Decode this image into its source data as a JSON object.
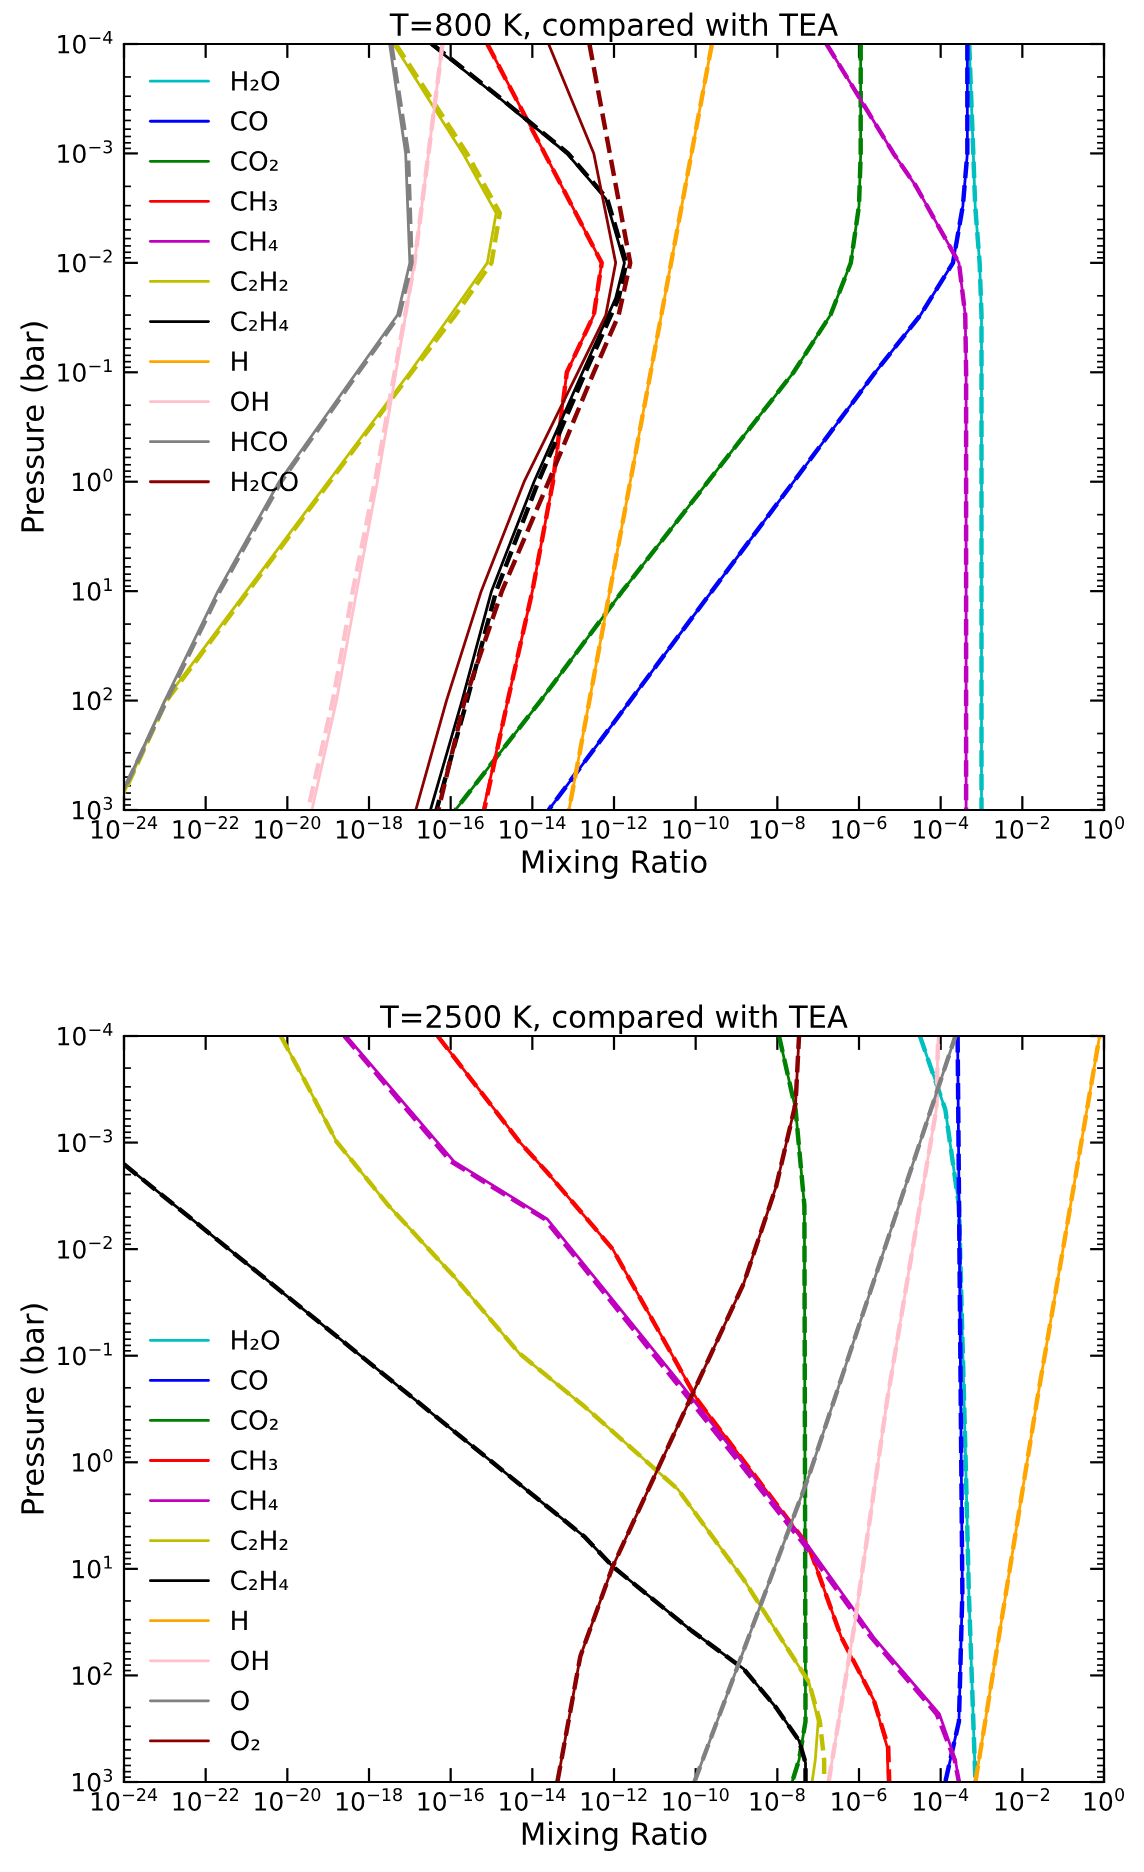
{
  "chart_data": [
    {
      "type": "line",
      "title": "T=800 K, compared with TEA",
      "xlabel": "Mixing Ratio",
      "ylabel": "Pressure (bar)",
      "log": "xy",
      "grid": false,
      "legend": "top left",
      "marker": "none",
      "xlim": [
        1e-24,
        1
      ],
      "ylim": [
        1000,
        0.0001
      ],
      "xticks": [
        {
          "value": 1e-24,
          "label": "10$^{−24}$"
        },
        {
          "value": 1e-22,
          "label": "10$^{−22}$"
        },
        {
          "value": 1e-20,
          "label": "10$^{−20}$"
        },
        {
          "value": 1e-18,
          "label": "10$^{−18}$"
        },
        {
          "value": 1e-16,
          "label": "10$^{−16}$"
        },
        {
          "value": 1e-14,
          "label": "10$^{−14}$"
        },
        {
          "value": 1e-12,
          "label": "10$^{−12}$"
        },
        {
          "value": 1e-10,
          "label": "10$^{−10}$"
        },
        {
          "value": 1e-08,
          "label": "10$^{−8}$"
        },
        {
          "value": 1e-06,
          "label": "10$^{−6}$"
        },
        {
          "value": 0.0001,
          "label": "10$^{−4}$"
        },
        {
          "value": 0.01,
          "label": "10$^{−2}$"
        },
        {
          "value": 1,
          "label": "10$^{0}$"
        }
      ],
      "yticks": [
        {
          "value": 0.0001,
          "label": "10$^{−4}$"
        },
        {
          "value": 0.001,
          "label": "10$^{−3}$"
        },
        {
          "value": 0.01,
          "label": "10$^{−2}$"
        },
        {
          "value": 0.1,
          "label": "10$^{−1}$"
        },
        {
          "value": 1,
          "label": "10$^{0}$"
        },
        {
          "value": 10,
          "label": "10$^{1}$"
        },
        {
          "value": 100,
          "label": "10$^{2}$"
        },
        {
          "value": 1000,
          "label": "10$^{3}$"
        }
      ],
      "series": [
        {
          "name": "H₂O",
          "color": "#00bfbf",
          "line_style": "solid",
          "x": [
            0.0005,
            0.00063,
            0.0007,
            0.0009,
            0.001,
            0.001,
            0.001
          ],
          "values": [
            0.0001,
            0.001,
            0.003,
            0.01,
            0.03,
            0.1,
            1000
          ]
        },
        {
          "color": "#00bfbf",
          "line_style": "dashed",
          "x": [
            0.0005,
            0.00063,
            0.0007,
            0.0009,
            0.001,
            0.001,
            0.001
          ],
          "values": [
            0.0001,
            0.001,
            0.003,
            0.01,
            0.03,
            0.1,
            1000
          ]
        },
        {
          "name": "CO",
          "color": "#0000ff",
          "line_style": "solid",
          "x": [
            0.00045,
            0.00045,
            0.00035,
            0.0002,
            3.2e-05,
            2.5e-06,
            2.5e-08,
            2.5e-10,
            2.5e-12,
            2.5e-14
          ],
          "values": [
            0.0001,
            0.001,
            0.003,
            0.01,
            0.03,
            0.1,
            1,
            10,
            100,
            1000
          ]
        },
        {
          "color": "#0000ff",
          "line_style": "dashed",
          "x": [
            0.00045,
            0.00045,
            0.00035,
            0.0002,
            3.2e-05,
            2.5e-06,
            2.5e-08,
            2.5e-10,
            2.5e-12,
            2.5e-14
          ],
          "values": [
            0.0001,
            0.001,
            0.003,
            0.01,
            0.03,
            0.1,
            1,
            10,
            100,
            1000
          ]
        },
        {
          "name": "CO₂",
          "color": "#008000",
          "line_style": "solid",
          "x": [
            1.1e-06,
            1.1e-06,
            1e-06,
            6.3e-07,
            2e-07,
            2.5e-08,
            2e-10,
            1.6e-12,
            1.6e-14,
            1.3e-16
          ],
          "values": [
            0.0001,
            0.001,
            0.003,
            0.01,
            0.03,
            0.1,
            1,
            10,
            100,
            1000
          ]
        },
        {
          "color": "#008000",
          "line_style": "dashed",
          "x": [
            1.1e-06,
            1.1e-06,
            1e-06,
            6.3e-07,
            2e-07,
            2.5e-08,
            2e-10,
            1.6e-12,
            1.6e-14,
            1.3e-16
          ],
          "values": [
            0.0001,
            0.001,
            0.003,
            0.01,
            0.03,
            0.1,
            1,
            10,
            100,
            1000
          ]
        },
        {
          "name": "CH₃",
          "color": "#ff0000",
          "line_style": "solid",
          "x": [
            7.9e-16,
            2e-14,
            5e-13,
            3.2e-13,
            7e-14,
            3.2e-14,
            1e-14,
            2.5e-15,
            6.3e-16
          ],
          "values": [
            0.0001,
            0.001,
            0.01,
            0.03,
            0.1,
            1,
            10,
            100,
            1000
          ]
        },
        {
          "color": "#ff0000",
          "line_style": "dashed",
          "x": [
            7.9e-16,
            2e-14,
            5e-13,
            3.2e-13,
            7e-14,
            3.2e-14,
            1e-14,
            2.5e-15,
            6.6e-16
          ],
          "values": [
            0.0001,
            0.001,
            0.01,
            0.03,
            0.1,
            1,
            10,
            100,
            1000
          ]
        },
        {
          "name": "CH₄",
          "color": "#bf00bf",
          "line_style": "solid",
          "x": [
            1.6e-07,
            7e-06,
            2.5e-05,
            0.00028,
            0.0004,
            0.00042,
            0.00042
          ],
          "values": [
            0.0001,
            0.001,
            0.002,
            0.01,
            0.03,
            0.1,
            1000
          ]
        },
        {
          "color": "#bf00bf",
          "line_style": "dashed",
          "x": [
            1.6e-07,
            7e-06,
            2.5e-05,
            0.00028,
            0.0004,
            0.00042,
            0.00042
          ],
          "values": [
            0.0001,
            0.001,
            0.002,
            0.01,
            0.03,
            0.1,
            1000
          ]
        },
        {
          "name": "C₂H₂",
          "color": "#bfbf00",
          "line_style": "solid",
          "x": [
            4e-18,
            2e-16,
            1.3e-15,
            7.9e-16,
            1e-16,
            1e-17,
            1e-19,
            1e-21,
            1e-23,
            1e-24
          ],
          "values": [
            0.0001,
            0.001,
            0.0035,
            0.01,
            0.03,
            0.1,
            1,
            10,
            100,
            700
          ]
        },
        {
          "color": "#bfbf00",
          "line_style": "dashed",
          "x": [
            4.5e-18,
            2.5e-16,
            1.6e-15,
            1e-15,
            1.3e-16,
            1.1e-17,
            1.1e-19,
            1.1e-21,
            1.1e-23,
            1e-24
          ],
          "values": [
            0.0001,
            0.001,
            0.0035,
            0.01,
            0.03,
            0.1,
            1,
            10,
            100,
            700
          ]
        },
        {
          "name": "C₂H₄",
          "color": "#000000",
          "line_style": "solid",
          "x": [
            3.2e-17,
            1.7e-15,
            7e-14,
            6.3e-13,
            1.8e-12,
            1.1e-12,
            1.7e-13,
            1.1e-14,
            1e-15,
            1.9e-16,
            3.2e-17
          ],
          "values": [
            0.0001,
            0.00032,
            0.001,
            0.0026,
            0.01,
            0.021,
            0.1,
            1,
            10,
            100,
            1000
          ]
        },
        {
          "color": "#000000",
          "line_style": "dashed",
          "x": [
            3.5e-17,
            1.8e-15,
            7.5e-14,
            6.8e-13,
            2e-12,
            1.3e-12,
            2e-13,
            1.4e-14,
            1.3e-15,
            2.5e-16,
            4.5e-17
          ],
          "values": [
            0.0001,
            0.00032,
            0.001,
            0.0026,
            0.01,
            0.021,
            0.1,
            1,
            10,
            100,
            1000
          ]
        },
        {
          "name": "H",
          "color": "#ffa500",
          "line_style": "solid",
          "x": [
            2.5e-10,
            7.9e-14
          ],
          "values": [
            0.0001,
            1000
          ]
        },
        {
          "color": "#ffa500",
          "line_style": "dashed",
          "x": [
            2.5e-10,
            7.9e-14
          ],
          "values": [
            0.0001,
            1000
          ]
        },
        {
          "name": "OH",
          "color": "#ffc0cb",
          "line_style": "solid",
          "x": [
            6.3e-17,
            1.3e-17,
            1.6e-18,
            5e-19,
            1.6e-19,
            4e-20
          ],
          "values": [
            0.0001,
            0.01,
            1,
            10,
            100,
            1000
          ]
        },
        {
          "color": "#ffc0cb",
          "line_style": "dashed",
          "x": [
            6.3e-17,
            1.3e-17,
            1.4e-18,
            4e-19,
            1.3e-19,
            3.2e-20
          ],
          "values": [
            0.0001,
            0.01,
            1,
            10,
            100,
            1000
          ]
        },
        {
          "name": "HCO",
          "color": "#808080",
          "line_style": "solid",
          "x": [
            3.2e-18,
            7.9e-18,
            1e-17,
            5e-18,
            5e-19,
            6.3e-21,
            2e-22,
            1e-23,
            1e-24
          ],
          "values": [
            0.0001,
            0.001,
            0.01,
            0.03,
            0.1,
            1,
            10,
            100,
            650
          ]
        },
        {
          "color": "#808080",
          "line_style": "dashed",
          "x": [
            3.5e-18,
            9e-18,
            1.1e-17,
            5.5e-18,
            5.5e-19,
            7e-21,
            2.2e-22,
            1.1e-23,
            1e-24
          ],
          "values": [
            0.0001,
            0.001,
            0.01,
            0.03,
            0.1,
            1,
            10,
            100,
            650
          ]
        },
        {
          "name": "H₂CO",
          "color": "#8b0000",
          "line_style": "solid",
          "x": [
            2.5e-14,
            3.2e-13,
            1.1e-12,
            6.3e-13,
            1.3e-13,
            6.3e-15,
            5.6e-16,
            7.9e-17,
            1.4e-17
          ],
          "values": [
            0.0001,
            0.001,
            0.01,
            0.03,
            0.1,
            1,
            10,
            100,
            1000
          ]
        },
        {
          "color": "#8b0000",
          "line_style": "dashed",
          "x": [
            2.5e-13,
            7.9e-13,
            2.5e-12,
            1.3e-12,
            3.2e-13,
            2.5e-14,
            1.8e-15,
            2.2e-16,
            5e-17
          ],
          "values": [
            0.0001,
            0.001,
            0.01,
            0.03,
            0.1,
            1,
            10,
            100,
            1000
          ]
        }
      ]
    },
    {
      "type": "line",
      "title": "T=2500 K, compared with TEA",
      "xlabel": "Mixing Ratio",
      "ylabel": "Pressure (bar)",
      "log": "xy",
      "grid": false,
      "legend": "bottom left",
      "marker": "none",
      "xlim": [
        1e-24,
        1
      ],
      "ylim": [
        1000,
        0.0001
      ],
      "xticks": [
        {
          "value": 1e-24,
          "label": "10$^{−24}$"
        },
        {
          "value": 1e-22,
          "label": "10$^{−22}$"
        },
        {
          "value": 1e-20,
          "label": "10$^{−20}$"
        },
        {
          "value": 1e-18,
          "label": "10$^{−18}$"
        },
        {
          "value": 1e-16,
          "label": "10$^{−16}$"
        },
        {
          "value": 1e-14,
          "label": "10$^{−14}$"
        },
        {
          "value": 1e-12,
          "label": "10$^{−12}$"
        },
        {
          "value": 1e-10,
          "label": "10$^{−10}$"
        },
        {
          "value": 1e-08,
          "label": "10$^{−8}$"
        },
        {
          "value": 1e-06,
          "label": "10$^{−6}$"
        },
        {
          "value": 0.0001,
          "label": "10$^{−4}$"
        },
        {
          "value": 0.01,
          "label": "10$^{−2}$"
        },
        {
          "value": 1,
          "label": "10$^{0}$"
        }
      ],
      "yticks": [
        {
          "value": 0.0001,
          "label": "10$^{−4}$"
        },
        {
          "value": 0.001,
          "label": "10$^{−3}$"
        },
        {
          "value": 0.01,
          "label": "10$^{−2}$"
        },
        {
          "value": 0.1,
          "label": "10$^{−1}$"
        },
        {
          "value": 1,
          "label": "10$^{0}$"
        },
        {
          "value": 10,
          "label": "10$^{1}$"
        },
        {
          "value": 100,
          "label": "10$^{2}$"
        },
        {
          "value": 1000,
          "label": "10$^{3}$"
        }
      ],
      "series": [
        {
          "name": "H₂O",
          "color": "#00bfbf",
          "line_style": "solid",
          "x": [
            3.1e-05,
            0.00013,
            0.00028,
            0.00041,
            0.00049,
            0.00071
          ],
          "values": [
            0.0001,
            0.00049,
            0.0039,
            1,
            16.6,
            1000
          ]
        },
        {
          "color": "#00bfbf",
          "line_style": "dashed",
          "x": [
            3.1e-05,
            0.00013,
            0.00028,
            0.00041,
            0.00049,
            0.00071
          ],
          "values": [
            0.0001,
            0.00049,
            0.0039,
            1,
            16.6,
            1000
          ]
        },
        {
          "name": "CO",
          "color": "#0000ff",
          "line_style": "solid",
          "x": [
            0.00026,
            0.00034,
            0.00028,
            0.00013
          ],
          "values": [
            0.0001,
            16.6,
            270,
            1000
          ]
        },
        {
          "color": "#0000ff",
          "line_style": "dashed",
          "x": [
            0.00026,
            0.00034,
            0.00028,
            0.00013
          ],
          "values": [
            0.0001,
            16.6,
            270,
            1000
          ]
        },
        {
          "name": "CO₂",
          "color": "#008000",
          "line_style": "solid",
          "x": [
            1.1e-08,
            2.8e-08,
            4.6e-08,
            4.9e-08,
            3.4e-08,
            2.3e-08
          ],
          "values": [
            0.0001,
            0.00049,
            0.0039,
            270,
            620,
            1000
          ]
        },
        {
          "color": "#008000",
          "line_style": "dashed",
          "x": [
            1.1e-08,
            2.8e-08,
            4.6e-08,
            4.9e-08,
            3.4e-08,
            2.3e-08
          ],
          "values": [
            0.0001,
            0.00049,
            0.0039,
            270,
            620,
            1000
          ]
        },
        {
          "name": "CH₃",
          "color": "#ff0000",
          "line_style": "solid",
          "x": [
            4.8e-17,
            4.8e-15,
            2.3e-14,
            9.3e-13,
            1.1e-10,
            5.9e-08,
            3.7e-07,
            2.3e-06,
            4.9e-06,
            5.2e-06
          ],
          "values": [
            0.0001,
            0.00098,
            0.0019,
            0.01,
            0.26,
            6.2,
            44,
            170,
            470,
            1000
          ]
        },
        {
          "color": "#ff0000",
          "line_style": "dashed",
          "x": [
            4.8e-17,
            4.8e-15,
            2.3e-14,
            9.3e-13,
            1.1e-10,
            5.9e-08,
            3.7e-07,
            2.3e-06,
            5.2e-06,
            5.5e-06
          ],
          "values": [
            0.0001,
            0.00098,
            0.0019,
            0.01,
            0.26,
            6.2,
            44,
            170,
            470,
            1000
          ]
        },
        {
          "name": "CH₄",
          "color": "#bf00bf",
          "line_style": "solid",
          "x": [
            2.8e-19,
            1.2e-16,
            2.3e-14,
            3.7e-11,
            5.9e-08,
            2.3e-06,
            9.3e-05,
            0.00023,
            0.00028
          ],
          "values": [
            0.0001,
            0.0015,
            0.0052,
            0.17,
            6.2,
            44,
            230,
            620,
            1000
          ]
        },
        {
          "color": "#bf00bf",
          "line_style": "dashed",
          "x": [
            2.5e-19,
            1e-16,
            2e-14,
            3e-11,
            5e-08,
            2e-06,
            8e-05,
            0.00022,
            0.00028
          ],
          "values": [
            0.0001,
            0.0015,
            0.0052,
            0.17,
            6.2,
            44,
            230,
            620,
            1000
          ]
        },
        {
          "name": "C₂H₂",
          "color": "#bfbf00",
          "line_style": "solid",
          "x": [
            6.9e-21,
            2.5e-20,
            1.6e-19,
            3e-18,
            1.2e-16,
            4.8e-15,
            1.9e-13,
            3.7e-11,
            1.5e-09,
            9.3e-09,
            5.9e-08,
            1e-07,
            8.5e-08,
            7.1e-08
          ],
          "values": [
            0.0001,
            0.00025,
            0.00098,
            0.0039,
            0.018,
            0.095,
            0.3,
            1.8,
            12.6,
            38,
            115,
            270,
            620,
            1000
          ]
        },
        {
          "color": "#bfbf00",
          "line_style": "dashed",
          "x": [
            6.9e-21,
            2.5e-20,
            1.6e-19,
            3e-18,
            1.2e-16,
            4.8e-15,
            1.9e-13,
            3.7e-11,
            1.5e-09,
            9.3e-09,
            5.9e-08,
            1.1e-07,
            1.4e-07,
            1.4e-07
          ],
          "values": [
            0.0001,
            0.00025,
            0.00098,
            0.0039,
            0.018,
            0.095,
            0.3,
            1.8,
            12.6,
            38,
            115,
            270,
            620,
            1000
          ]
        },
        {
          "name": "C₂H₄",
          "color": "#000000",
          "line_style": "solid",
          "x": [
            1e-24,
            1.9e-13,
            9.3e-13,
            7.9e-11,
            1.5e-09,
            9.3e-09,
            3.4e-08,
            4.9e-08,
            4.9e-08
          ],
          "values": [
            0.0016,
            5,
            9.5,
            38,
            87,
            200,
            410,
            660,
            1000
          ]
        },
        {
          "color": "#000000",
          "line_style": "dashed",
          "x": [
            1e-24,
            1.9e-13,
            9.3e-13,
            7.9e-11,
            1.5e-09,
            9.3e-09,
            3.4e-08,
            4.9e-08,
            4.9e-08
          ],
          "values": [
            0.0016,
            5,
            9.5,
            38,
            87,
            200,
            410,
            660,
            1000
          ]
        },
        {
          "name": "H",
          "color": "#ffa500",
          "line_style": "solid",
          "x": [
            0.00071,
            0.023,
            0.78
          ],
          "values": [
            1000,
            0.26,
            0.0001
          ]
        },
        {
          "color": "#ffa500",
          "line_style": "dashed",
          "x": [
            0.00071,
            0.023,
            0.78
          ],
          "values": [
            1000,
            0.26,
            0.0001
          ]
        },
        {
          "name": "OH",
          "color": "#ffc0cb",
          "line_style": "solid",
          "x": [
            1.8e-07,
            7.8e-07,
            4.9e-06,
            3.1e-05,
            7.8e-05,
            8.7e-05
          ],
          "values": [
            1000,
            33,
            0.26,
            0.0039,
            0.00049,
            0.0001
          ]
        },
        {
          "color": "#ffc0cb",
          "line_style": "dashed",
          "x": [
            1.8e-07,
            7.8e-07,
            4.9e-06,
            3.1e-05,
            7.8e-05,
            8.7e-05
          ],
          "values": [
            1000,
            33,
            0.26,
            0.0039,
            0.00049,
            0.0001
          ]
        },
        {
          "name": "O",
          "color": "#808080",
          "line_style": "solid",
          "x": [
            9.3e-11,
            5.9e-08,
            0.00023
          ],
          "values": [
            1000,
            1.35,
            0.0001
          ]
        },
        {
          "color": "#808080",
          "line_style": "dashed",
          "x": [
            9.3e-11,
            5.9e-08,
            0.00023
          ],
          "values": [
            1000,
            1.35,
            0.0001
          ]
        },
        {
          "name": "O₂",
          "color": "#8b0000",
          "line_style": "solid",
          "x": [
            4.1e-14,
            1.5e-13,
            9.3e-13,
            3.7e-11,
            1.5e-09,
            9.3e-09,
            2.8e-08,
            3.4e-08
          ],
          "values": [
            1000,
            66,
            9.5,
            0.45,
            0.021,
            0.0026,
            0.00043,
            0.0001
          ]
        },
        {
          "color": "#8b0000",
          "line_style": "dashed",
          "x": [
            4.1e-14,
            1.5e-13,
            9.3e-13,
            3.7e-11,
            1.5e-09,
            9.3e-09,
            2.8e-08,
            3.4e-08
          ],
          "values": [
            1000,
            66,
            9.5,
            0.45,
            0.021,
            0.0026,
            0.00043,
            0.0001
          ]
        }
      ]
    }
  ]
}
